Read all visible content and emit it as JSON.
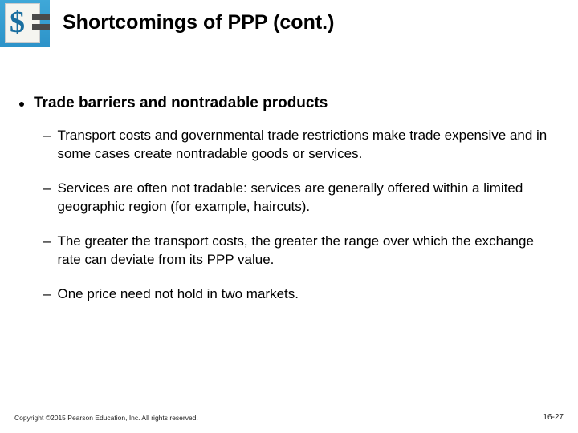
{
  "title": "Shortcomings of PPP (cont.)",
  "logo": {
    "symbol": "$",
    "bg_gradient_top": "#3fa8d8",
    "bg_gradient_bottom": "#2d93c9"
  },
  "main_bullet": "Trade barriers and nontradable products",
  "sub_bullets": [
    "Transport costs and governmental trade restrictions make trade expensive and in some cases create nontradable goods or services.",
    "Services are often not tradable: services are generally offered within a limited geographic region (for example, haircuts).",
    "The greater the transport costs, the greater the range over which the exchange rate can deviate from its PPP value.",
    "One price need not hold in two markets."
  ],
  "footer": {
    "copyright": "Copyright ©2015 Pearson Education, Inc. All rights reserved.",
    "page": "16-27"
  }
}
